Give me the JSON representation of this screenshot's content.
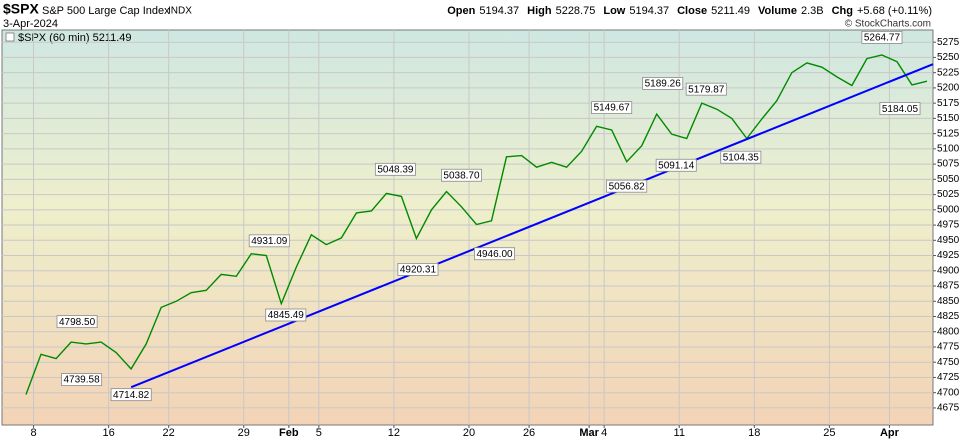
{
  "chart_data": {
    "type": "line",
    "header": {
      "symbol": "$SPX",
      "name": "S&P 500 Large Cap Index",
      "exchange": "INDX",
      "date": "3-Apr-2024",
      "copyright": "© StockCharts.com",
      "quote": [
        {
          "label": "Open",
          "value": 5194.37
        },
        {
          "label": "High",
          "value": 5228.75
        },
        {
          "label": "Low",
          "value": 5194.37
        },
        {
          "label": "Close",
          "value": 5211.49
        },
        {
          "label": "Volume",
          "value": "2.3B"
        },
        {
          "label": "Chg",
          "value": "+5.68 (+0.11%)"
        }
      ]
    },
    "x": [
      -0.5,
      0.5,
      1.5,
      2.5,
      3.5,
      4.5,
      5.5,
      6.5,
      7.5,
      8.5,
      9.5,
      10.5,
      11.5,
      12.5,
      13.5,
      14.5,
      15.5,
      16.5,
      17.5,
      18.5,
      19.5,
      20.5,
      21.5,
      22.5,
      23.5,
      24.5,
      25.5,
      26.5,
      27.5,
      28.5,
      29.5,
      30.5,
      31.5,
      32.5,
      33.5,
      34.5,
      35.5,
      36.5,
      37.5,
      38.5,
      39.5,
      40.5,
      41.5,
      42.5,
      43.5,
      44.5,
      45.5,
      46.5,
      47.5,
      48.5,
      49.5,
      50.5,
      51.5,
      52.5,
      53.5,
      54.5,
      55.5,
      56.5,
      57.5,
      58.5,
      59.5
    ],
    "series": [
      {
        "name": "$SPX (60 min) 5211.49",
        "color": "#008a00",
        "values": [
          4697,
          4763,
          4756,
          4783,
          4780,
          4783,
          4766,
          4739,
          4780,
          4840,
          4850,
          4864,
          4868,
          4894,
          4891,
          4928,
          4925,
          4846,
          4906,
          4959,
          4943,
          4954,
          4995,
          4998,
          5027,
          5022,
          4953,
          5000,
          5030,
          5005,
          4976,
          4982,
          5087,
          5089,
          5070,
          5078,
          5070,
          5096,
          5137,
          5131,
          5079,
          5105,
          5157,
          5124,
          5117,
          5175,
          5165,
          5150,
          5117,
          5149,
          5179,
          5225,
          5241,
          5234,
          5218,
          5204,
          5248,
          5254,
          5243,
          5205,
          5211
        ]
      }
    ],
    "trendline": {
      "x": [
        6.5,
        59.9
      ],
      "y": [
        4709,
        5239
      ],
      "color": "#0000ff"
    },
    "annotations": [
      {
        "x": 2.9,
        "value": 4798.5,
        "label": "4798.50",
        "pos": "above"
      },
      {
        "x": 3.2,
        "value": 4739.58,
        "pos": "below"
      },
      {
        "x": 6.5,
        "value": 4714.82,
        "pos": "below"
      },
      {
        "x": 15.7,
        "value": 4931.09,
        "pos": "above"
      },
      {
        "x": 16.8,
        "value": 4845.49,
        "pos": "below"
      },
      {
        "x": 24.1,
        "value": 5048.39,
        "pos": "above"
      },
      {
        "x": 25.6,
        "value": 4920.31,
        "pos": "below"
      },
      {
        "x": 28.5,
        "value": 5038.7,
        "label": "5038.70",
        "pos": "above"
      },
      {
        "x": 30.7,
        "value": 4946,
        "label": "4946.00",
        "pos": "below"
      },
      {
        "x": 38.5,
        "value": 5149.67,
        "pos": "above"
      },
      {
        "x": 39.5,
        "value": 5056.82,
        "pos": "below"
      },
      {
        "x": 41.9,
        "value": 5189.26,
        "pos": "above"
      },
      {
        "x": 42.8,
        "value": 5091.14,
        "pos": "below"
      },
      {
        "x": 44.8,
        "value": 5179.87,
        "pos": "above"
      },
      {
        "x": 47.1,
        "value": 5104.35,
        "pos": "below"
      },
      {
        "x": 56.5,
        "value": 5264.77,
        "pos": "above"
      },
      {
        "x": 57.7,
        "value": 5184.05,
        "pos": "below"
      }
    ],
    "xlim": [
      -2.1,
      59.9
    ],
    "xticks": [
      {
        "value": 0,
        "label": "8"
      },
      {
        "value": 5,
        "label": "16"
      },
      {
        "value": 9,
        "label": "22"
      },
      {
        "value": 14,
        "label": "29"
      },
      {
        "value": 17,
        "label": "Feb"
      },
      {
        "value": 19,
        "label": "5"
      },
      {
        "value": 24,
        "label": "12"
      },
      {
        "value": 29,
        "label": "20"
      },
      {
        "value": 33,
        "label": "26"
      },
      {
        "value": 37,
        "label": "Mar"
      },
      {
        "value": 38,
        "label": "4"
      },
      {
        "value": 43,
        "label": "11"
      },
      {
        "value": 48,
        "label": "18"
      },
      {
        "value": 53,
        "label": "25"
      },
      {
        "value": 57,
        "label": "Apr"
      }
    ],
    "ylim": [
      4647,
      5295
    ],
    "yticks": [
      4675,
      4700,
      4725,
      4750,
      4775,
      4800,
      4825,
      4850,
      4875,
      4900,
      4925,
      4950,
      4975,
      5000,
      5025,
      5050,
      5075,
      5100,
      5125,
      5150,
      5175,
      5200,
      5225,
      5250,
      5275
    ],
    "grid": true
  }
}
